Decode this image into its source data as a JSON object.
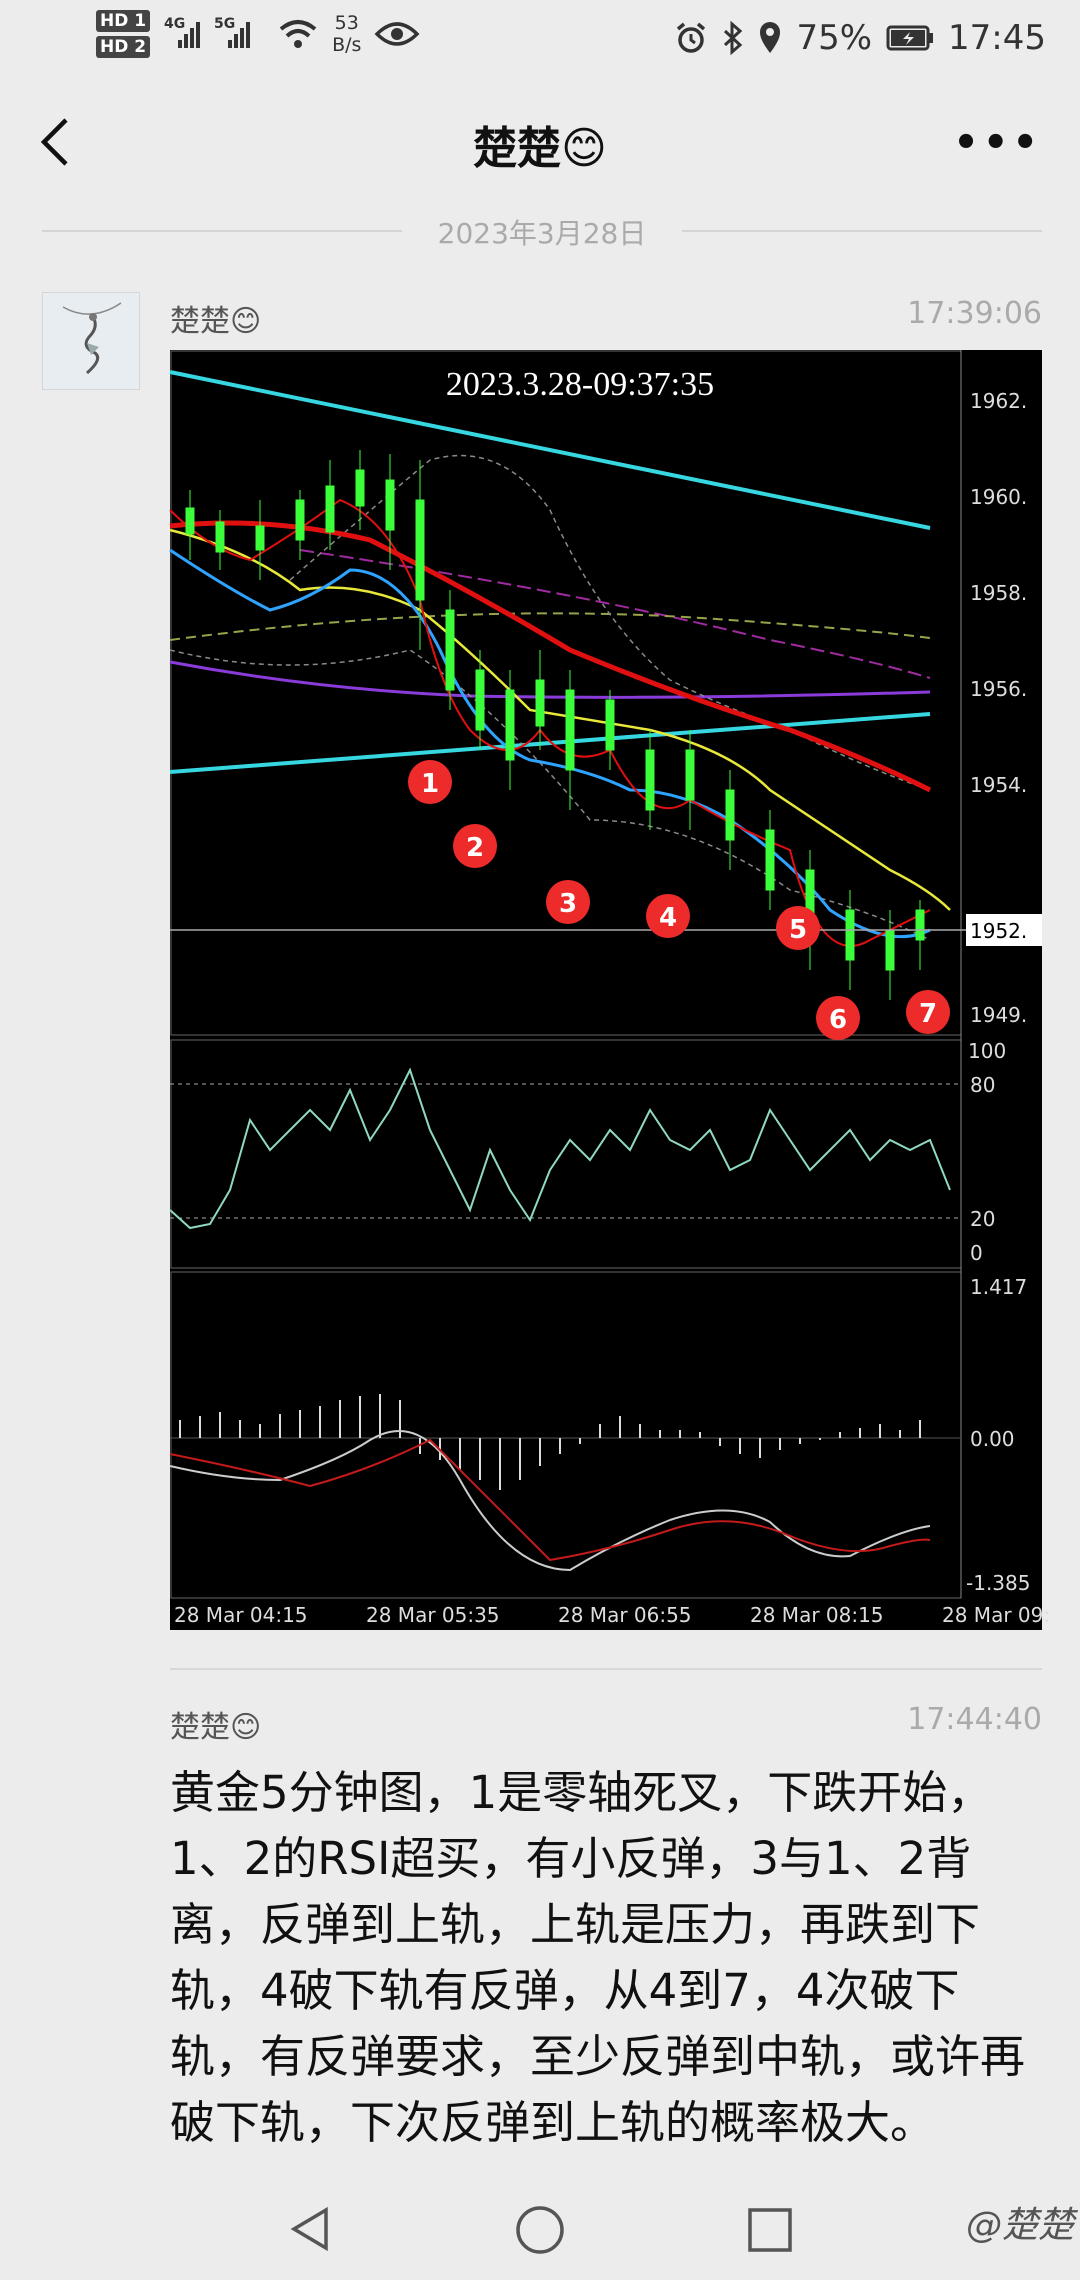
{
  "status_bar": {
    "sim1": "HD 1",
    "sim2": "HD 2",
    "net1": "4G",
    "net2": "5G",
    "speed_value": "53",
    "speed_unit": "B/s",
    "battery": "75%",
    "time": "17:45",
    "icons": [
      "alarm-icon",
      "bluetooth-icon",
      "location-icon",
      "battery-icon",
      "eye-icon",
      "wifi-icon",
      "signal-icon"
    ]
  },
  "header": {
    "title": "楚楚😊",
    "back_icon": "chevron-left-icon",
    "more_icon": "more-icon"
  },
  "date_separator": "2023年3月28日",
  "messages": [
    {
      "sender": "楚楚😊",
      "time": "17:39:06"
    },
    {
      "sender": "楚楚😊",
      "time": "17:44:40",
      "text": "黄金5分钟图，1是零轴死叉，下跌开始，1、2的RSI超买，有小反弹，3与1、2背离，反弹到上轨，上轨是压力，再跌到下轨，4破下轨有反弹，从4到7，4次破下轨，有反弹要求，至少反弹到中轨，或许再破下轨，下次反弹到上轨的概率极大。"
    }
  ],
  "chart_image": {
    "overlay_title": "2023.3.28-09:37:35",
    "price_axis": [
      "1962.",
      "1960.",
      "1958.",
      "1956.",
      "1954.",
      "1952.",
      "1949."
    ],
    "current_price_tag": "1952.",
    "rsi_axis": [
      "100",
      "80",
      "20",
      "0"
    ],
    "macd_axis": [
      "1.417",
      "0.00",
      "-1.385"
    ],
    "time_axis": [
      "28 Mar 04:15",
      "28 Mar 05:35",
      "28 Mar 06:55",
      "28 Mar 08:15",
      "28 Mar 09:"
    ],
    "markers": [
      "1",
      "2",
      "3",
      "4",
      "5",
      "6",
      "7"
    ],
    "colors": {
      "background": "#000000",
      "cyan": "#36d7e0",
      "red": "#e01010",
      "yellow": "#e8e83a",
      "purple": "#8a3bd9",
      "blue": "#2ea3ff",
      "marker": "#ee2b2b",
      "candle": "#3aff3a"
    }
  },
  "navbar": {
    "keys": [
      "back-triangle-icon",
      "home-circle-icon",
      "recents-square-icon"
    ]
  },
  "watermark": "@楚楚"
}
